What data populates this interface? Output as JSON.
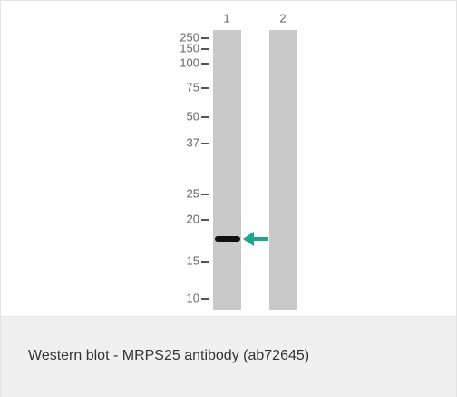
{
  "image": {
    "lanes": [
      "1",
      "2"
    ],
    "markers": [
      250,
      150,
      100,
      75,
      50,
      37,
      25,
      20,
      15,
      10
    ]
  },
  "caption": "Western blot - MRPS25 antibody (ab72645)"
}
